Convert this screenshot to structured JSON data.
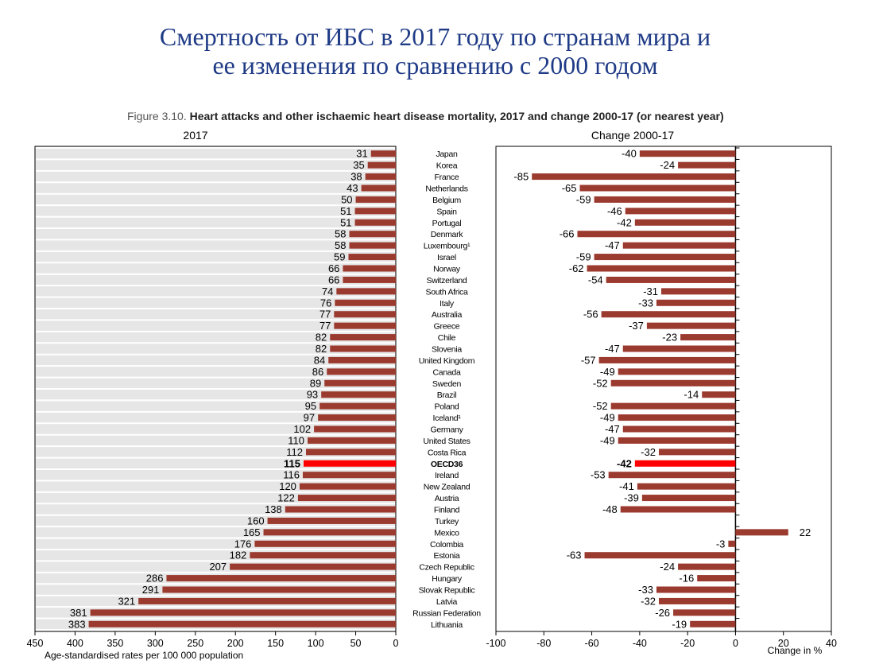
{
  "slide_title": {
    "line1": "Смертность от ИБС в 2017 году по странам мира и",
    "line2": "ее изменения по сравнению с 2000 годом"
  },
  "figure_caption": {
    "number": "Figure 3.10.",
    "text": "Heart attacks and other ischaemic heart disease mortality, 2017 and change 2000-17 (or nearest year)"
  },
  "colors": {
    "bar": "#9b3a2e",
    "highlight": "#ff0000",
    "panel_bg": "#e6e6e6",
    "grid": "#ffffff",
    "title": "#1f3b86"
  },
  "chart_data": [
    {
      "type": "bar",
      "orientation": "horizontal",
      "title": "2017",
      "xlabel": "Age-standardised rates per 100 000 population",
      "xlim": [
        0,
        450
      ],
      "x_reversed": true,
      "ticks": [
        450,
        400,
        350,
        300,
        250,
        200,
        150,
        100,
        50,
        0
      ],
      "grid": true,
      "highlight": "OECD36",
      "categories": [
        "Japan",
        "Korea",
        "France",
        "Netherlands",
        "Belgium",
        "Spain",
        "Portugal",
        "Denmark",
        "Luxembourg¹",
        "Israel",
        "Norway",
        "Switzerland",
        "South Africa",
        "Italy",
        "Australia",
        "Greece",
        "Chile",
        "Slovenia",
        "United Kingdom",
        "Canada",
        "Sweden",
        "Brazil",
        "Poland",
        "Iceland¹",
        "Germany",
        "United States",
        "Costa Rica",
        "OECD36",
        "Ireland",
        "New Zealand",
        "Austria",
        "Finland",
        "Turkey",
        "Mexico",
        "Colombia",
        "Estonia",
        "Czech Republic",
        "Hungary",
        "Slovak Republic",
        "Latvia",
        "Russian Federation",
        "Lithuania"
      ],
      "values": [
        31,
        35,
        38,
        43,
        50,
        51,
        51,
        58,
        58,
        59,
        66,
        66,
        74,
        76,
        77,
        77,
        82,
        82,
        84,
        86,
        89,
        93,
        95,
        97,
        102,
        110,
        112,
        115,
        116,
        120,
        122,
        138,
        160,
        165,
        176,
        182,
        207,
        286,
        291,
        321,
        381,
        383
      ]
    },
    {
      "type": "bar",
      "orientation": "horizontal",
      "title": "Change 2000-17",
      "xlabel": "Change in %",
      "xlim": [
        -100,
        40
      ],
      "ticks": [
        -100,
        -80,
        -60,
        -40,
        -20,
        0,
        20,
        40
      ],
      "grid": false,
      "highlight": "OECD36",
      "categories": [
        "Japan",
        "Korea",
        "France",
        "Netherlands",
        "Belgium",
        "Spain",
        "Portugal",
        "Denmark",
        "Luxembourg¹",
        "Israel",
        "Norway",
        "Switzerland",
        "South Africa",
        "Italy",
        "Australia",
        "Greece",
        "Chile",
        "Slovenia",
        "United Kingdom",
        "Canada",
        "Sweden",
        "Brazil",
        "Poland",
        "Iceland¹",
        "Germany",
        "United States",
        "Costa Rica",
        "OECD36",
        "Ireland",
        "New Zealand",
        "Austria",
        "Finland",
        "Turkey",
        "Mexico",
        "Colombia",
        "Estonia",
        "Czech Republic",
        "Hungary",
        "Slovak Republic",
        "Latvia",
        "Russian Federation",
        "Lithuania"
      ],
      "values": [
        -40,
        -24,
        -85,
        -65,
        -59,
        -46,
        -42,
        -66,
        -47,
        -59,
        -62,
        -54,
        -31,
        -33,
        -56,
        -37,
        -23,
        -47,
        -57,
        -49,
        -52,
        -14,
        -52,
        -49,
        -47,
        -49,
        -32,
        -42,
        -53,
        -41,
        -39,
        -48,
        null,
        22,
        -3,
        -63,
        -24,
        -16,
        -33,
        -32,
        -26,
        -19
      ]
    }
  ]
}
